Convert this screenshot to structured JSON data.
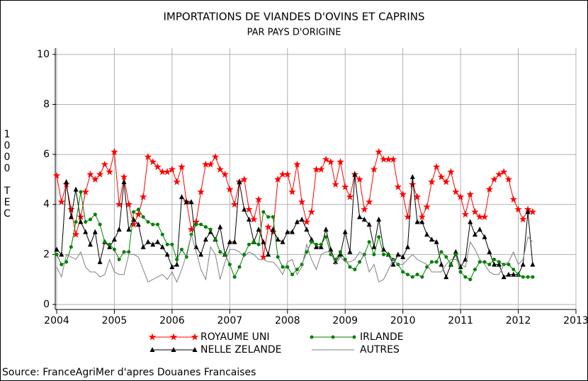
{
  "chart_data": {
    "type": "line",
    "title": "IMPORTATIONS DE VIANDES D'OVINS ET CAPRINS",
    "subtitle": "PAR PAYS D'ORIGINE",
    "ylabel": "1000 TEC",
    "source": "Source: FranceAgriMer d'apres Douanes Francaises",
    "xlim": [
      2004,
      2013
    ],
    "xticks": [
      2004,
      2005,
      2006,
      2007,
      2008,
      2009,
      2010,
      2011,
      2012,
      2013
    ],
    "ylim": [
      -0.2,
      10.25
    ],
    "yticks": [
      0,
      2,
      4,
      6,
      8,
      10
    ],
    "grid": true,
    "legend": "bottom",
    "x": [
      2004,
      2004.083,
      2004.167,
      2004.25,
      2004.333,
      2004.417,
      2004.5,
      2004.583,
      2004.667,
      2004.75,
      2004.833,
      2004.917,
      2005,
      2005.083,
      2005.167,
      2005.25,
      2005.333,
      2005.417,
      2005.5,
      2005.583,
      2005.667,
      2005.75,
      2005.833,
      2005.917,
      2006,
      2006.083,
      2006.167,
      2006.25,
      2006.333,
      2006.417,
      2006.5,
      2006.583,
      2006.667,
      2006.75,
      2006.833,
      2006.917,
      2007,
      2007.083,
      2007.167,
      2007.25,
      2007.333,
      2007.417,
      2007.5,
      2007.583,
      2007.667,
      2007.75,
      2007.833,
      2007.917,
      2008,
      2008.083,
      2008.167,
      2008.25,
      2008.333,
      2008.417,
      2008.5,
      2008.583,
      2008.667,
      2008.75,
      2008.833,
      2008.917,
      2009,
      2009.083,
      2009.167,
      2009.25,
      2009.333,
      2009.417,
      2009.5,
      2009.583,
      2009.667,
      2009.75,
      2009.833,
      2009.917,
      2010,
      2010.083,
      2010.167,
      2010.25,
      2010.333,
      2010.417,
      2010.5,
      2010.583,
      2010.667,
      2010.75,
      2010.833,
      2010.917,
      2011,
      2011.083,
      2011.167,
      2011.25,
      2011.333,
      2011.417,
      2011.5,
      2011.583,
      2011.667,
      2011.75,
      2011.833,
      2011.917,
      2012,
      2012.083,
      2012.167,
      2012.25
    ],
    "series": [
      {
        "name": "ROYAUME UNI",
        "color": "#ff0000",
        "marker": "star",
        "values": [
          5.15,
          4.1,
          4.8,
          3.8,
          2.8,
          3.5,
          4.5,
          5.2,
          5.0,
          5.2,
          5.6,
          5.3,
          6.1,
          4.0,
          5.1,
          4.0,
          3.2,
          3.6,
          4.3,
          5.9,
          5.7,
          5.5,
          5.3,
          5.3,
          5.4,
          4.9,
          5.5,
          4.1,
          3.0,
          3.3,
          4.5,
          5.6,
          5.6,
          5.9,
          5.4,
          5.2,
          4.6,
          4.0,
          4.9,
          5.0,
          3.8,
          3.4,
          4.2,
          1.9,
          3.1,
          2.9,
          5.0,
          5.2,
          5.2,
          4.5,
          5.6,
          4.1,
          3.3,
          3.7,
          5.4,
          5.4,
          5.8,
          5.7,
          4.8,
          5.7,
          4.7,
          4.3,
          5.2,
          5.0,
          3.8,
          4.1,
          5.4,
          6.1,
          5.8,
          5.8,
          5.8,
          4.7,
          4.4,
          3.5,
          4.8,
          4.3,
          3.5,
          3.9,
          4.9,
          5.5,
          5.1,
          4.9,
          5.3,
          4.5,
          4.3,
          3.6,
          4.4,
          3.7,
          3.5,
          3.5,
          4.6,
          5.0,
          5.2,
          5.3,
          5.0,
          4.2,
          3.8,
          3.4,
          3.8,
          3.7
        ]
      },
      {
        "name": "NELLE ZELANDE",
        "color": "#000000",
        "marker": "triangle",
        "values": [
          2.2,
          2.0,
          4.9,
          3.5,
          4.6,
          3.3,
          2.9,
          2.4,
          2.9,
          1.7,
          2.5,
          2.3,
          2.6,
          3.0,
          4.9,
          3.0,
          3.4,
          3.2,
          2.3,
          2.5,
          2.4,
          2.5,
          2.3,
          2.0,
          1.5,
          1.6,
          4.3,
          4.1,
          4.1,
          2.3,
          2.0,
          2.6,
          2.9,
          2.6,
          3.1,
          2.0,
          2.5,
          2.5,
          4.9,
          3.8,
          3.4,
          2.5,
          3.0,
          2.5,
          2.0,
          3.0,
          2.6,
          2.5,
          2.9,
          2.9,
          3.3,
          3.4,
          3.0,
          2.6,
          2.3,
          2.3,
          3.0,
          2.2,
          1.7,
          2.0,
          2.9,
          2.1,
          5.2,
          3.5,
          3.4,
          3.2,
          2.3,
          3.4,
          2.2,
          2.0,
          1.6,
          2.0,
          1.9,
          2.3,
          5.1,
          3.3,
          3.3,
          2.8,
          2.6,
          2.5,
          1.6,
          1.1,
          1.6,
          2.1,
          1.5,
          1.8,
          3.3,
          2.8,
          3.0,
          2.7,
          2.1,
          1.6,
          1.6,
          1.1,
          1.2,
          1.2,
          1.2,
          1.6,
          3.7,
          1.6
        ]
      },
      {
        "name": "IRLANDE",
        "color": "#008000",
        "marker": "circle",
        "values": [
          2.0,
          1.6,
          1.7,
          2.3,
          3.3,
          4.5,
          3.3,
          3.4,
          3.6,
          3.2,
          2.5,
          2.4,
          2.2,
          1.8,
          2.1,
          2.1,
          3.7,
          3.8,
          3.5,
          3.3,
          3.2,
          3.2,
          2.8,
          2.4,
          2.4,
          1.8,
          2.2,
          1.9,
          2.8,
          3.2,
          3.2,
          3.1,
          3.0,
          2.6,
          2.1,
          2.0,
          1.6,
          1.1,
          1.5,
          2.0,
          2.4,
          2.5,
          2.4,
          3.7,
          3.5,
          3.5,
          1.9,
          1.5,
          1.5,
          1.2,
          1.4,
          1.6,
          2.1,
          2.5,
          2.4,
          2.4,
          2.7,
          2.0,
          1.8,
          2.1,
          1.8,
          1.5,
          1.4,
          1.7,
          2.0,
          2.5,
          2.0,
          2.7,
          2.0,
          2.0,
          1.8,
          1.6,
          1.3,
          1.2,
          1.1,
          1.2,
          1.1,
          1.5,
          1.7,
          1.7,
          2.1,
          1.9,
          1.6,
          2.0,
          1.3,
          1.1,
          1.0,
          1.4,
          1.7,
          1.7,
          1.6,
          1.8,
          1.7,
          1.6,
          1.6,
          1.4,
          1.2,
          1.1,
          1.1,
          1.1
        ]
      },
      {
        "name": "AUTRES",
        "color": "#808080",
        "marker": "none",
        "values": [
          1.5,
          1.1,
          2.0,
          1.9,
          1.8,
          2.1,
          1.5,
          1.3,
          1.3,
          1.1,
          1.2,
          1.8,
          1.3,
          1.2,
          1.2,
          2.0,
          2.0,
          1.9,
          1.4,
          0.9,
          1.0,
          1.1,
          1.2,
          1.0,
          1.3,
          0.9,
          1.4,
          2.0,
          2.8,
          2.1,
          1.4,
          1.0,
          2.3,
          2.0,
          1.0,
          1.7,
          2.2,
          2.2,
          2.1,
          1.9,
          2.1,
          2.0,
          1.8,
          1.8,
          1.7,
          1.7,
          1.5,
          1.2,
          1.7,
          1.8,
          1.2,
          1.5,
          2.4,
          1.8,
          1.4,
          2.0,
          2.1,
          2.1,
          1.6,
          1.9,
          1.7,
          1.7,
          1.8,
          2.1,
          2.0,
          1.3,
          1.6,
          0.9,
          1.0,
          1.4,
          1.8,
          1.6,
          1.6,
          1.8,
          2.0,
          1.8,
          1.7,
          1.6,
          1.3,
          1.3,
          1.3,
          1.6,
          1.8,
          1.8,
          1.6,
          1.5,
          2.5,
          2.2,
          1.8,
          1.6,
          1.3,
          1.2,
          1.2,
          1.6,
          1.7,
          2.1,
          1.6,
          1.8,
          2.7,
          2.5
        ]
      }
    ]
  }
}
